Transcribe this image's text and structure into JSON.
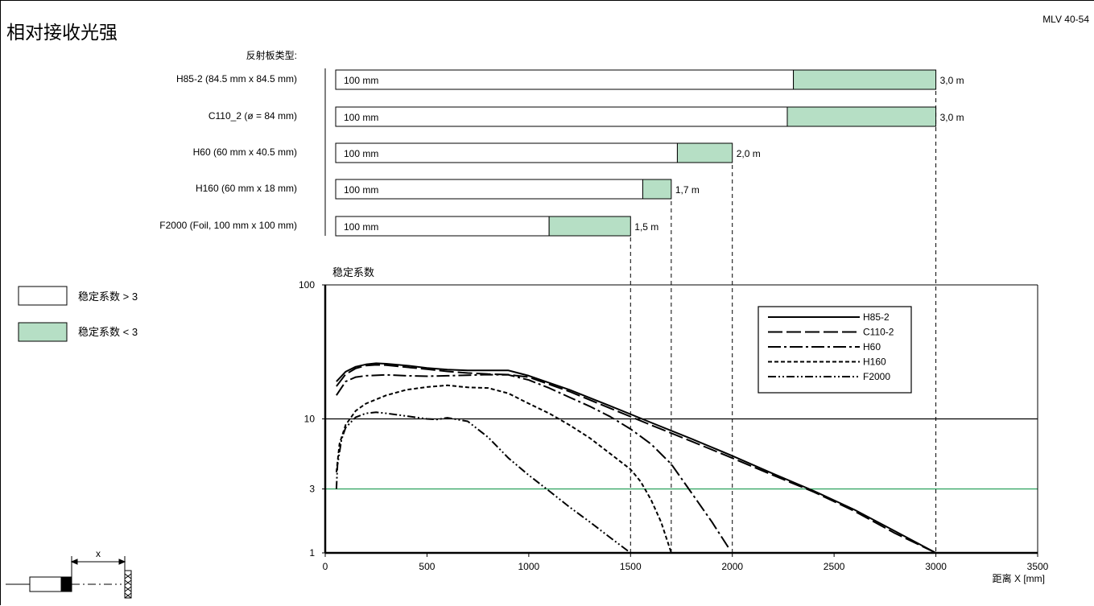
{
  "header": {
    "title": "相对接收光强",
    "model": "MLV 40-54"
  },
  "reflectors": {
    "heading": "反射板类型:",
    "bar_start_label": "100 mm",
    "colors": {
      "stable_high": "#ffffff",
      "stable_low": "#b6dfc5",
      "border": "#000000"
    },
    "items": [
      {
        "name": "H85-2 (84.5 mm x 84.5 mm)",
        "threshold_mm": 2300,
        "range_mm": 3000,
        "range_label": "3,0 m"
      },
      {
        "name": "C110_2 (ø = 84 mm)",
        "threshold_mm": 2270,
        "range_mm": 3000,
        "range_label": "3,0 m"
      },
      {
        "name": "H60 (60 mm x 40.5 mm)",
        "threshold_mm": 1730,
        "range_mm": 2000,
        "range_label": "2,0 m"
      },
      {
        "name": "H160 (60 mm x 18 mm)",
        "threshold_mm": 1560,
        "range_mm": 1700,
        "range_label": "1,7 m"
      },
      {
        "name": "F2000 (Foil, 100 mm x 100 mm)",
        "threshold_mm": 1100,
        "range_mm": 1500,
        "range_label": "1,5 m"
      }
    ]
  },
  "legend_boxes": [
    {
      "label": "稳定系数 > 3",
      "color": "#ffffff"
    },
    {
      "label": "稳定系数 < 3",
      "color": "#b6dfc5"
    }
  ],
  "chart_data": {
    "type": "line",
    "ylabel": "稳定系数",
    "xlabel": "距离 X [mm]",
    "xlim": [
      0,
      3500
    ],
    "ylim": [
      1,
      100
    ],
    "yscale": "log",
    "xticks": [
      0,
      500,
      1000,
      1500,
      2000,
      2500,
      3000,
      3500
    ],
    "yticks": [
      1,
      3,
      10,
      100
    ],
    "ytick_labels": [
      "1",
      "3",
      "10",
      "100"
    ],
    "reference_lines": [
      {
        "y": 10,
        "color": "#000000"
      },
      {
        "y": 3,
        "color": "#1a9a50"
      }
    ],
    "dashed_x_markers": [
      1500,
      1700,
      2000,
      3000
    ],
    "legend_position": "top-right",
    "series": [
      {
        "name": "H85-2",
        "dash": "solid",
        "x": [
          55,
          100,
          150,
          200,
          250,
          300,
          400,
          500,
          600,
          700,
          800,
          900,
          1000,
          1200,
          1400,
          1600,
          1800,
          2000,
          2200,
          2400,
          2600,
          2800,
          3000
        ],
        "y": [
          19,
          22.5,
          24.5,
          25.5,
          26,
          25.8,
          25,
          24,
          23.3,
          23,
          23,
          23,
          21,
          16.5,
          12.5,
          9.4,
          7.1,
          5.3,
          3.9,
          2.9,
          2.1,
          1.45,
          1.0
        ]
      },
      {
        "name": "C110-2",
        "dash": "long-dash",
        "x": [
          55,
          100,
          150,
          200,
          250,
          300,
          400,
          500,
          600,
          700,
          800,
          900,
          1000,
          1200,
          1400,
          1600,
          1800,
          2000,
          2200,
          2400,
          2600,
          2800,
          3000
        ],
        "y": [
          17.5,
          21.5,
          23.8,
          25,
          25.3,
          25.2,
          24.3,
          23.5,
          22.6,
          22,
          21.6,
          21.4,
          20.5,
          16,
          12,
          9,
          6.8,
          5.1,
          3.8,
          2.85,
          2.05,
          1.4,
          1.0
        ]
      },
      {
        "name": "H60",
        "dash": "dash-dot",
        "x": [
          55,
          100,
          150,
          200,
          300,
          400,
          500,
          600,
          700,
          800,
          900,
          1000,
          1100,
          1200,
          1300,
          1400,
          1500,
          1600,
          1700,
          1800,
          1900,
          1980
        ],
        "y": [
          15,
          19,
          20.5,
          21,
          21.3,
          21,
          20.8,
          21,
          21.2,
          21.4,
          21.3,
          19.5,
          17,
          14.5,
          12.4,
          10.4,
          8.4,
          6.5,
          4.6,
          2.8,
          1.7,
          1.1
        ]
      },
      {
        "name": "H160",
        "dash": "short-dash",
        "x": [
          55,
          70,
          100,
          150,
          200,
          300,
          400,
          500,
          600,
          700,
          800,
          900,
          1000,
          1100,
          1200,
          1300,
          1400,
          1500,
          1550,
          1600,
          1650,
          1700
        ],
        "y": [
          4,
          6.5,
          9,
          11.5,
          13,
          15,
          16.5,
          17.3,
          17.8,
          17.2,
          17,
          15.5,
          13,
          11,
          9,
          7.2,
          5.5,
          4.2,
          3.4,
          2.5,
          1.7,
          1.0
        ]
      },
      {
        "name": "F2000",
        "dash": "dash-dot-dot",
        "x": [
          55,
          60,
          80,
          100,
          150,
          200,
          250,
          300,
          400,
          500,
          550,
          600,
          700,
          800,
          900,
          1000,
          1100,
          1200,
          1300,
          1400,
          1500
        ],
        "y": [
          3,
          4.5,
          7,
          8.6,
          10.3,
          11,
          11.2,
          11,
          10.5,
          10,
          9.9,
          10.2,
          9.6,
          7.3,
          5.1,
          3.8,
          2.9,
          2.2,
          1.7,
          1.3,
          1.0
        ]
      }
    ]
  }
}
